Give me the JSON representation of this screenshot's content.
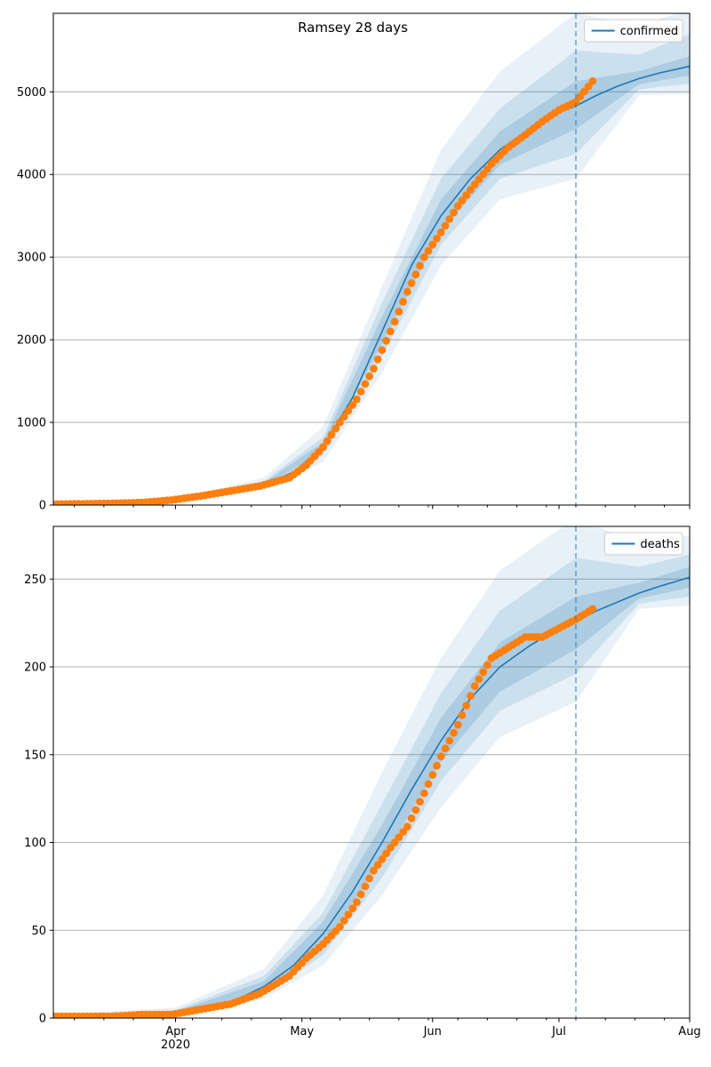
{
  "figure": {
    "title": "Ramsey 28 days"
  },
  "chart_data": [
    {
      "type": "line",
      "title": "Ramsey 28 days",
      "xlabel": "",
      "ylabel": "",
      "xlim": [
        "2020-03-03",
        "2020-08-01"
      ],
      "ylim": [
        0,
        5950
      ],
      "yticks": [
        0,
        1000,
        2000,
        3000,
        4000,
        5000
      ],
      "ytick_labels": [
        "0",
        "1000",
        "2000",
        "3000",
        "4000",
        "5000"
      ],
      "xticks": [],
      "xtick_labels": [],
      "grid": "horizontal",
      "legend": {
        "position": "top-right",
        "entries": [
          {
            "name": "confirmed",
            "color": "#1f77b4"
          }
        ]
      },
      "forecast_start": "2020-07-05",
      "series": [
        {
          "name": "confirmed",
          "kind": "model-median",
          "color": "#1f77b4",
          "x": [
            "2020-03-03",
            "2020-03-15",
            "2020-03-25",
            "2020-04-01",
            "2020-04-08",
            "2020-04-15",
            "2020-04-22",
            "2020-04-29",
            "2020-05-06",
            "2020-05-13",
            "2020-05-20",
            "2020-05-27",
            "2020-06-03",
            "2020-06-10",
            "2020-06-17",
            "2020-06-24",
            "2020-07-01",
            "2020-07-05",
            "2020-07-10",
            "2020-07-15",
            "2020-07-20",
            "2020-07-25",
            "2020-08-01"
          ],
          "values": [
            5,
            15,
            30,
            60,
            110,
            170,
            250,
            400,
            700,
            1300,
            2100,
            2900,
            3500,
            3950,
            4300,
            4550,
            4750,
            4830,
            4960,
            5070,
            5160,
            5230,
            5310
          ]
        },
        {
          "name": "observed",
          "kind": "observed-points",
          "color": "#ff7f0e",
          "x": [
            "2020-03-03",
            "2020-03-10",
            "2020-03-17",
            "2020-03-24",
            "2020-03-31",
            "2020-04-07",
            "2020-04-14",
            "2020-04-21",
            "2020-04-28",
            "2020-05-02",
            "2020-05-06",
            "2020-05-10",
            "2020-05-14",
            "2020-05-18",
            "2020-05-22",
            "2020-05-26",
            "2020-05-30",
            "2020-06-03",
            "2020-06-07",
            "2020-06-11",
            "2020-06-15",
            "2020-06-19",
            "2020-06-23",
            "2020-06-27",
            "2020-07-01",
            "2020-07-05",
            "2020-07-09"
          ],
          "values": [
            10,
            15,
            20,
            30,
            60,
            110,
            170,
            230,
            330,
            480,
            700,
            1000,
            1280,
            1650,
            2100,
            2580,
            3000,
            3300,
            3620,
            3880,
            4130,
            4330,
            4480,
            4640,
            4780,
            4880,
            5130
          ]
        }
      ],
      "bands": [
        {
          "level": "outer",
          "opacity": 0.1,
          "x": [
            "2020-03-03",
            "2020-04-01",
            "2020-04-22",
            "2020-05-06",
            "2020-05-20",
            "2020-06-03",
            "2020-06-17",
            "2020-07-05",
            "2020-07-20",
            "2020-08-01"
          ],
          "lower": [
            0,
            45,
            190,
            520,
            1600,
            2900,
            3700,
            3950,
            4960,
            4970
          ],
          "upper": [
            12,
            80,
            330,
            950,
            2650,
            4300,
            5250,
            5950,
            5800,
            6000
          ]
        },
        {
          "level": "middle",
          "opacity": 0.14,
          "x": [
            "2020-03-03",
            "2020-04-01",
            "2020-04-22",
            "2020-05-06",
            "2020-05-20",
            "2020-06-03",
            "2020-06-17",
            "2020-07-05",
            "2020-07-20",
            "2020-08-01"
          ],
          "lower": [
            2,
            52,
            215,
            600,
            1800,
            3150,
            3950,
            4250,
            5030,
            5100
          ],
          "upper": [
            9,
            70,
            290,
            820,
            2450,
            3950,
            4800,
            5500,
            5450,
            5700
          ]
        },
        {
          "level": "inner",
          "opacity": 0.18,
          "x": [
            "2020-03-03",
            "2020-04-01",
            "2020-04-22",
            "2020-05-06",
            "2020-05-20",
            "2020-06-03",
            "2020-06-17",
            "2020-07-05",
            "2020-07-20",
            "2020-08-01"
          ],
          "lower": [
            3,
            56,
            230,
            650,
            1950,
            3320,
            4120,
            4550,
            5090,
            5200
          ],
          "upper": [
            7,
            64,
            270,
            760,
            2280,
            3700,
            4520,
            5130,
            5250,
            5430
          ]
        }
      ]
    },
    {
      "type": "line",
      "title": "",
      "xlabel": "",
      "ylabel": "",
      "xlim": [
        "2020-03-03",
        "2020-08-01"
      ],
      "ylim": [
        0,
        280
      ],
      "yticks": [
        0,
        50,
        100,
        150,
        200,
        250
      ],
      "ytick_labels": [
        "0",
        "50",
        "100",
        "150",
        "200",
        "250"
      ],
      "xticks": [
        "2020-04-01",
        "2020-05-01",
        "2020-06-01",
        "2020-07-01",
        "2020-08-01"
      ],
      "xtick_labels": [
        "Apr\n2020",
        "May",
        "Jun",
        "Jul",
        "Aug"
      ],
      "grid": "horizontal",
      "legend": {
        "position": "top-right",
        "entries": [
          {
            "name": "deaths",
            "color": "#1f77b4"
          }
        ]
      },
      "forecast_start": "2020-07-05",
      "series": [
        {
          "name": "deaths",
          "kind": "model-median",
          "color": "#1f77b4",
          "x": [
            "2020-03-03",
            "2020-03-15",
            "2020-03-25",
            "2020-04-01",
            "2020-04-08",
            "2020-04-15",
            "2020-04-22",
            "2020-04-29",
            "2020-05-06",
            "2020-05-13",
            "2020-05-20",
            "2020-05-27",
            "2020-06-03",
            "2020-06-10",
            "2020-06-17",
            "2020-06-24",
            "2020-07-01",
            "2020-07-05",
            "2020-07-10",
            "2020-07-15",
            "2020-07-20",
            "2020-07-25",
            "2020-08-01"
          ],
          "values": [
            0.5,
            1,
            1.5,
            3,
            6,
            10,
            18,
            30,
            48,
            72,
            100,
            130,
            158,
            182,
            200,
            212,
            222,
            226,
            232,
            237,
            242,
            246,
            251
          ]
        },
        {
          "name": "observed",
          "kind": "observed-points",
          "color": "#ff7f0e",
          "x": [
            "2020-03-03",
            "2020-03-10",
            "2020-03-17",
            "2020-03-24",
            "2020-03-31",
            "2020-04-07",
            "2020-04-14",
            "2020-04-21",
            "2020-04-28",
            "2020-05-02",
            "2020-05-06",
            "2020-05-10",
            "2020-05-14",
            "2020-05-18",
            "2020-05-22",
            "2020-05-26",
            "2020-05-30",
            "2020-06-03",
            "2020-06-07",
            "2020-06-11",
            "2020-06-15",
            "2020-06-19",
            "2020-06-23",
            "2020-06-27",
            "2020-07-01",
            "2020-07-05",
            "2020-07-09"
          ],
          "values": [
            1,
            1,
            1,
            2,
            2,
            5,
            8,
            14,
            24,
            34,
            42,
            52,
            66,
            84,
            97,
            109,
            128,
            149,
            167,
            189,
            205,
            211,
            217,
            217,
            222,
            227,
            233
          ]
        }
      ],
      "bands": [
        {
          "level": "outer",
          "opacity": 0.1,
          "x": [
            "2020-03-03",
            "2020-04-01",
            "2020-04-22",
            "2020-05-06",
            "2020-05-20",
            "2020-06-03",
            "2020-06-17",
            "2020-07-05",
            "2020-07-20",
            "2020-08-01"
          ],
          "lower": [
            0,
            1,
            11,
            30,
            70,
            120,
            160,
            180,
            233,
            235
          ],
          "upper": [
            2,
            6,
            28,
            70,
            140,
            205,
            255,
            285,
            270,
            275
          ]
        },
        {
          "level": "middle",
          "opacity": 0.14,
          "x": [
            "2020-03-03",
            "2020-04-01",
            "2020-04-22",
            "2020-05-06",
            "2020-05-20",
            "2020-06-03",
            "2020-06-17",
            "2020-07-05",
            "2020-07-20",
            "2020-08-01"
          ],
          "lower": [
            0,
            2,
            13,
            36,
            80,
            135,
            175,
            196,
            236,
            240
          ],
          "upper": [
            1.5,
            4.5,
            24,
            60,
            122,
            185,
            232,
            262,
            257,
            264
          ]
        },
        {
          "level": "inner",
          "opacity": 0.18,
          "x": [
            "2020-03-03",
            "2020-04-01",
            "2020-04-22",
            "2020-05-06",
            "2020-05-20",
            "2020-06-03",
            "2020-06-17",
            "2020-07-05",
            "2020-07-20",
            "2020-08-01"
          ],
          "lower": [
            0.2,
            2.5,
            15,
            41,
            90,
            146,
            186,
            210,
            239,
            245
          ],
          "upper": [
            1,
            3.8,
            21,
            55,
            110,
            171,
            214,
            240,
            248,
            257
          ]
        }
      ]
    }
  ]
}
